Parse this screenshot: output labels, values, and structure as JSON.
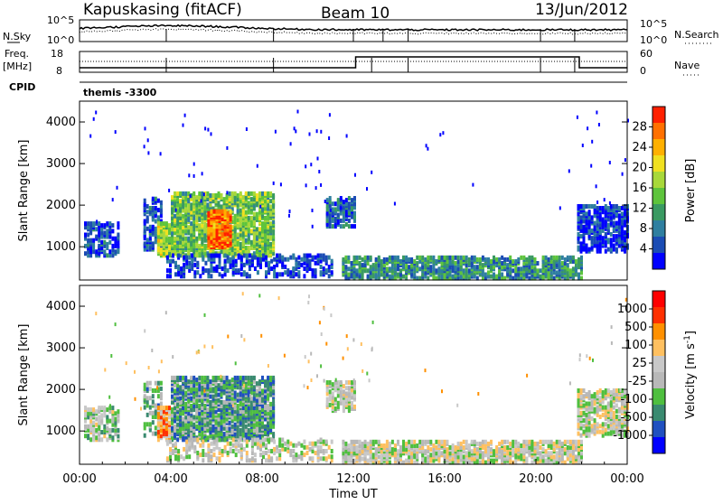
{
  "header": {
    "station": "Kapuskasing (fitACF)",
    "beam": "Beam 10",
    "date": "13/Jun/2012"
  },
  "top_panel": {
    "left_label": "N.Sky",
    "left_ticks": [
      "10^5",
      "10^0"
    ],
    "right_ticks": [
      "10^5",
      "10^0"
    ],
    "right_label": "N.Search"
  },
  "freq_panel": {
    "left_label_1": "Freq.",
    "left_label_2": "[MHz]",
    "left_ticks": [
      "18",
      "8"
    ],
    "right_ticks": [
      "60",
      "0"
    ],
    "right_label": "Nave"
  },
  "cpid": {
    "label": "CPID",
    "value": "themis -3300"
  },
  "colors": {
    "scale": [
      "#0000ff",
      "#1b4cb4",
      "#2f7fa0",
      "#3a9a62",
      "#5ec43c",
      "#a8d83a",
      "#f0e020",
      "#ffb000",
      "#ff7000",
      "#ff2000"
    ],
    "velocity": [
      "#0000ff",
      "#2050c0",
      "#3a8a70",
      "#4fbf3f",
      "#b8b8b8",
      "#c8c8c8",
      "#ffc060",
      "#ff9000",
      "#ff3000",
      "#ff0000"
    ]
  },
  "chart_data": [
    {
      "type": "heatmap",
      "id": "power",
      "ylabel": "Slant Range [km]",
      "yticks": [
        "1000",
        "2000",
        "3000",
        "4000"
      ],
      "ylim": [
        200,
        4500
      ],
      "colorbar_label": "Power [dB]",
      "colorbar_ticks": [
        "4",
        "8",
        "12",
        "16",
        "20",
        "24",
        "28"
      ],
      "colorbar_range": [
        0,
        32
      ],
      "regions": [
        {
          "t0": 0.2,
          "t1": 1.7,
          "r0": 800,
          "r1": 1600,
          "level": 0.15,
          "density": 0.55
        },
        {
          "t0": 2.8,
          "t1": 3.6,
          "r0": 900,
          "r1": 2200,
          "level": 0.15,
          "density": 0.45
        },
        {
          "t0": 3.4,
          "t1": 4.1,
          "r0": 800,
          "r1": 1600,
          "level": 0.55,
          "density": 0.75
        },
        {
          "t0": 4.0,
          "t1": 8.5,
          "r0": 800,
          "r1": 2300,
          "level": 0.45,
          "density": 0.75
        },
        {
          "t0": 5.6,
          "t1": 6.6,
          "r0": 1000,
          "r1": 1900,
          "level": 0.85,
          "density": 0.85
        },
        {
          "t0": 3.8,
          "t1": 11.0,
          "r0": 300,
          "r1": 800,
          "level": 0.12,
          "density": 0.35
        },
        {
          "t0": 10.8,
          "t1": 12.0,
          "r0": 1500,
          "r1": 2200,
          "level": 0.2,
          "density": 0.6
        },
        {
          "t0": 11.5,
          "t1": 22.0,
          "r0": 250,
          "r1": 750,
          "level": 0.3,
          "density": 0.65
        },
        {
          "t0": 21.8,
          "t1": 24.0,
          "r0": 900,
          "r1": 2000,
          "level": 0.12,
          "density": 0.6
        }
      ]
    },
    {
      "type": "heatmap",
      "id": "velocity",
      "ylabel": "Slant Range [km]",
      "yticks": [
        "1000",
        "2000",
        "3000",
        "4000"
      ],
      "ylim": [
        200,
        4500
      ],
      "colorbar_label": "Velocity [m s",
      "colorbar_label_sup": "-1",
      "colorbar_label_end": "]",
      "colorbar_ticks": [
        "1000",
        "500",
        "100",
        "25",
        "-25",
        "-100",
        "-500",
        "-1000"
      ],
      "regions": [
        {
          "t0": 0.2,
          "t1": 1.7,
          "r0": 800,
          "r1": 1600,
          "level": 0.45,
          "density": 0.55
        },
        {
          "t0": 2.8,
          "t1": 3.6,
          "r0": 900,
          "r1": 2200,
          "level": 0.35,
          "density": 0.4
        },
        {
          "t0": 3.4,
          "t1": 4.1,
          "r0": 800,
          "r1": 1600,
          "level": 0.7,
          "density": 0.75
        },
        {
          "t0": 4.0,
          "t1": 8.5,
          "r0": 800,
          "r1": 2300,
          "level": 0.3,
          "density": 0.75
        },
        {
          "t0": 3.8,
          "t1": 11.0,
          "r0": 300,
          "r1": 800,
          "level": 0.5,
          "density": 0.3
        },
        {
          "t0": 10.8,
          "t1": 12.0,
          "r0": 1500,
          "r1": 2200,
          "level": 0.48,
          "density": 0.6
        },
        {
          "t0": 11.5,
          "t1": 22.0,
          "r0": 250,
          "r1": 750,
          "level": 0.5,
          "density": 0.65
        },
        {
          "t0": 21.8,
          "t1": 24.0,
          "r0": 900,
          "r1": 2000,
          "level": 0.5,
          "density": 0.6
        }
      ]
    }
  ],
  "xaxis": {
    "label": "Time UT",
    "ticks": [
      "00:00",
      "04:00",
      "08:00",
      "12:00",
      "16:00",
      "20:00",
      "00:00"
    ],
    "tick_hours": [
      0,
      4,
      8,
      12,
      16,
      20,
      24
    ]
  }
}
